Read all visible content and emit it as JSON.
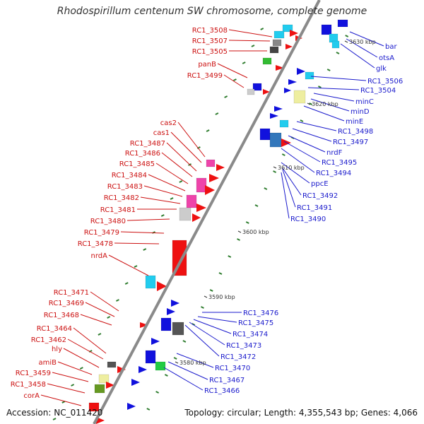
{
  "title": "Rhodospirillum centenum SW chromosome, complete genome",
  "accession": "Accession: NC_011420",
  "topology": "Topology: circular; Length: 4,355,543 bp; Genes: 4,066",
  "colors": {
    "left_label": "#cc1111",
    "right_label": "#1a1acc",
    "backbone": "#8a8a8a",
    "tick": "#2f7d2f"
  },
  "scale_labels": [
    "3630 kbp",
    "3620 kbp",
    "3610 kbp",
    "3600 kbp",
    "3590 kbp",
    "3580 kbp"
  ],
  "left_labels": [
    "RC1_3508",
    "RC1_3507",
    "RC1_3505",
    "panB",
    "RC1_3499",
    "cas2",
    "cas1",
    "RC1_3487",
    "RC1_3486",
    "RC1_3485",
    "RC1_3484",
    "RC1_3483",
    "RC1_3482",
    "RC1_3481",
    "RC1_3480",
    "RC1_3479",
    "RC1_3478",
    "nrdA",
    "RC1_3471",
    "RC1_3469",
    "RC1_3468",
    "RC1_3464",
    "RC1_3462",
    "hly",
    "amiB",
    "RC1_3459",
    "RC1_3458",
    "corA"
  ],
  "right_labels": [
    "bar",
    "otsA",
    "glk",
    "RC1_3506",
    "RC1_3504",
    "minC",
    "minD",
    "minE",
    "RC1_3498",
    "RC1_3497",
    "nrdF",
    "RC1_3495",
    "RC1_3494",
    "ppcE",
    "RC1_3492",
    "RC1_3491",
    "RC1_3490",
    "RC1_3476",
    "RC1_3475",
    "RC1_3474",
    "RC1_3473",
    "RC1_3472",
    "RC1_3470",
    "RC1_3467",
    "RC1_3466"
  ]
}
